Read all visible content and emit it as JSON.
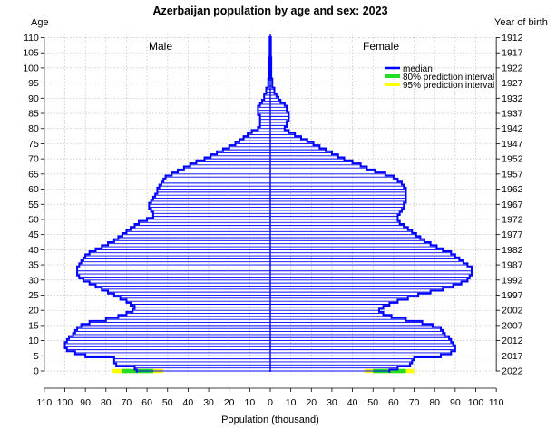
{
  "chart_data": {
    "type": "bar",
    "orientation": "horizontal-pyramid",
    "title": "Azerbaijan population by age and sex: 2023",
    "xlabel": "Population (thousand)",
    "left_axis_title": "Age",
    "right_axis_title": "Year of birth",
    "left_panel_label": "Male",
    "right_panel_label": "Female",
    "xlim": [
      -110,
      110
    ],
    "ylim": [
      0,
      110
    ],
    "grid": true,
    "legend_position": "top-right",
    "legend": [
      {
        "label": "median",
        "color": "#0000ff"
      },
      {
        "label": "80% prediction interval",
        "color": "#22dd22"
      },
      {
        "label": "95% prediction interval",
        "color": "#ffff00"
      }
    ],
    "x_ticks": [
      {
        "pos": -110,
        "label": "110"
      },
      {
        "pos": -100,
        "label": "100"
      },
      {
        "pos": -90,
        "label": "90"
      },
      {
        "pos": -80,
        "label": "80"
      },
      {
        "pos": -70,
        "label": "70"
      },
      {
        "pos": -60,
        "label": "60"
      },
      {
        "pos": -50,
        "label": "50"
      },
      {
        "pos": -40,
        "label": "40"
      },
      {
        "pos": -30,
        "label": "30"
      },
      {
        "pos": -20,
        "label": "20"
      },
      {
        "pos": -10,
        "label": "10"
      },
      {
        "pos": 0,
        "label": "0"
      },
      {
        "pos": 10,
        "label": "10"
      },
      {
        "pos": 20,
        "label": "20"
      },
      {
        "pos": 30,
        "label": "30"
      },
      {
        "pos": 40,
        "label": "40"
      },
      {
        "pos": 50,
        "label": "50"
      },
      {
        "pos": 60,
        "label": "60"
      },
      {
        "pos": 70,
        "label": "70"
      },
      {
        "pos": 80,
        "label": "80"
      },
      {
        "pos": 90,
        "label": "90"
      },
      {
        "pos": 100,
        "label": "100"
      },
      {
        "pos": 110,
        "label": "110"
      }
    ],
    "age_ticks": [
      "0",
      "5",
      "10",
      "15",
      "20",
      "25",
      "30",
      "35",
      "40",
      "45",
      "50",
      "55",
      "60",
      "65",
      "70",
      "75",
      "80",
      "85",
      "90",
      "95",
      "100",
      "105",
      "110"
    ],
    "birth_year_ticks": [
      "2022",
      "2017",
      "2012",
      "2007",
      "2002",
      "1997",
      "1992",
      "1987",
      "1982",
      "1977",
      "1972",
      "1967",
      "1962",
      "1957",
      "1952",
      "1947",
      "1942",
      "1937",
      "1932",
      "1927",
      "1922",
      "1917",
      "1912"
    ],
    "ages": [
      0,
      1,
      2,
      3,
      4,
      5,
      6,
      7,
      8,
      9,
      10,
      11,
      12,
      13,
      14,
      15,
      16,
      17,
      18,
      19,
      20,
      21,
      22,
      23,
      24,
      25,
      26,
      27,
      28,
      29,
      30,
      31,
      32,
      33,
      34,
      35,
      36,
      37,
      38,
      39,
      40,
      41,
      42,
      43,
      44,
      45,
      46,
      47,
      48,
      49,
      50,
      51,
      52,
      53,
      54,
      55,
      56,
      57,
      58,
      59,
      60,
      61,
      62,
      63,
      64,
      65,
      66,
      67,
      68,
      69,
      70,
      71,
      72,
      73,
      74,
      75,
      76,
      77,
      78,
      79,
      80,
      81,
      82,
      83,
      84,
      85,
      86,
      87,
      88,
      89,
      90,
      91,
      92,
      93,
      94,
      95,
      96,
      97,
      98,
      99,
      100,
      101,
      102,
      103,
      104,
      105,
      106,
      107,
      108,
      109,
      110
    ],
    "series": [
      {
        "name": "Male",
        "values": [
          65,
          66,
          75,
          76,
          76,
          90,
          95,
          99,
          100,
          100,
          99,
          98,
          96,
          95,
          94,
          92,
          88,
          80,
          74,
          70,
          67,
          66,
          68,
          70,
          73,
          76,
          79,
          82,
          85,
          88,
          91,
          93,
          94,
          94,
          94,
          93,
          92,
          91,
          90,
          88,
          85,
          82,
          79,
          76,
          74,
          72,
          70,
          68,
          66,
          64,
          60,
          57,
          57,
          58,
          59,
          59,
          58,
          57,
          56,
          55,
          55,
          54,
          53,
          52,
          51,
          48,
          45,
          42,
          39,
          36,
          32,
          29,
          26,
          23,
          20,
          17,
          15,
          13,
          11,
          9,
          6,
          5,
          5,
          5,
          5,
          6,
          6,
          6,
          5,
          4,
          3,
          3,
          2,
          2,
          1,
          1,
          1,
          0.5,
          0.5,
          0.5,
          0.5,
          0.5,
          0.5,
          0.5,
          0.3,
          0.3,
          0.3,
          0.3,
          0.3,
          0.3,
          0.3
        ]
      },
      {
        "name": "Female",
        "values": [
          58,
          62,
          68,
          69,
          70,
          83,
          88,
          90,
          90,
          89,
          88,
          87,
          85,
          84,
          83,
          79,
          74,
          66,
          59,
          55,
          53,
          55,
          58,
          62,
          67,
          72,
          78,
          84,
          89,
          93,
          96,
          97,
          98,
          98,
          98,
          96,
          94,
          92,
          90,
          88,
          84,
          81,
          78,
          75,
          73,
          71,
          69,
          67,
          65,
          63,
          62,
          62,
          63,
          64,
          65,
          65,
          66,
          66,
          66,
          66,
          66,
          65,
          64,
          62,
          60,
          56,
          51,
          47,
          44,
          40,
          36,
          33,
          30,
          27,
          24,
          21,
          18,
          15,
          12,
          9,
          7,
          8,
          8,
          9,
          9,
          9,
          8,
          8,
          7,
          5,
          4,
          3,
          2,
          2,
          1,
          1,
          1,
          0.5,
          0.5,
          0.5,
          0.5,
          0.5,
          0.5,
          0.5,
          0.3,
          0.3,
          0.3,
          0.3,
          0.3,
          0.3,
          0.3
        ]
      }
    ],
    "age0_prediction_intervals": {
      "male": {
        "pi80": [
          57,
          72
        ],
        "pi95": [
          52,
          77
        ]
      },
      "female": {
        "pi80": [
          50,
          66
        ],
        "pi95": [
          46,
          70
        ]
      }
    }
  }
}
